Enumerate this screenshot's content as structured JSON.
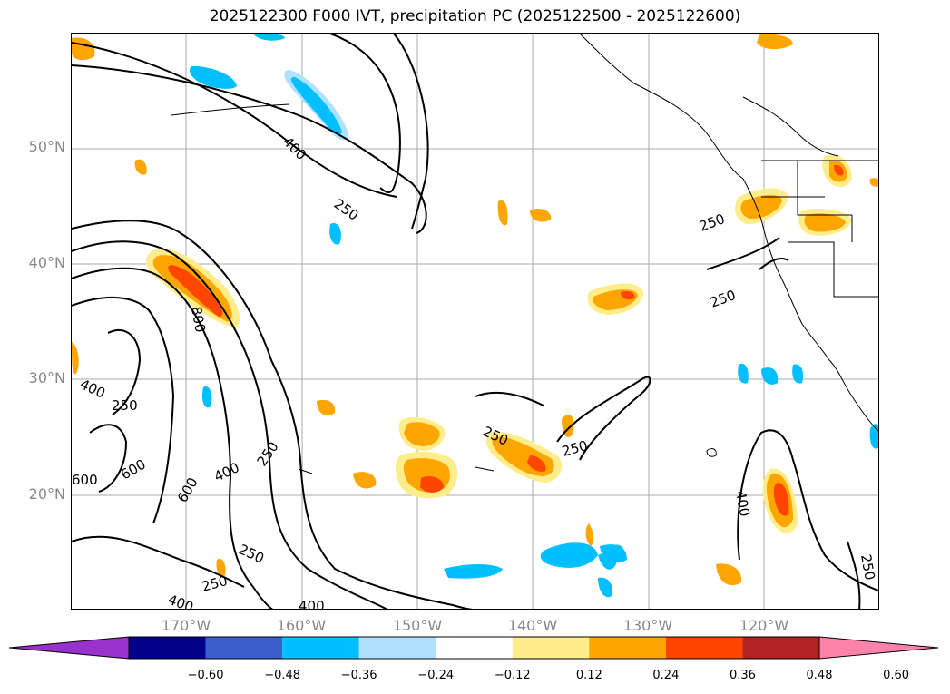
{
  "title": "2025122300 F000 IVT, precipitation PC (2025122500 - 2025122600)",
  "map": {
    "lat_labels": [
      "50°N",
      "40°N",
      "30°N",
      "20°N"
    ],
    "lon_labels": [
      "170°W",
      "160°W",
      "150°W",
      "140°W",
      "130°W",
      "120°W"
    ],
    "contour_labels": [
      "400",
      "250",
      "250",
      "800",
      "400",
      "250",
      "600",
      "600",
      "600",
      "400",
      "250",
      "250",
      "250",
      "250",
      "250",
      "400",
      "400",
      "250",
      "250",
      "400"
    ]
  },
  "colorbar": {
    "ticks": [
      "−0.60",
      "−0.48",
      "−0.36",
      "−0.24",
      "−0.12",
      "0.12",
      "0.24",
      "0.36",
      "0.48",
      "0.60"
    ],
    "colors": [
      "#9932CC",
      "#00008B",
      "#3A5FCD",
      "#00BFFF",
      "#B0E2FF",
      "#FFFFFF",
      "#FFEC8B",
      "#FFA500",
      "#FF4500",
      "#B22222",
      "#FF82AB"
    ]
  }
}
